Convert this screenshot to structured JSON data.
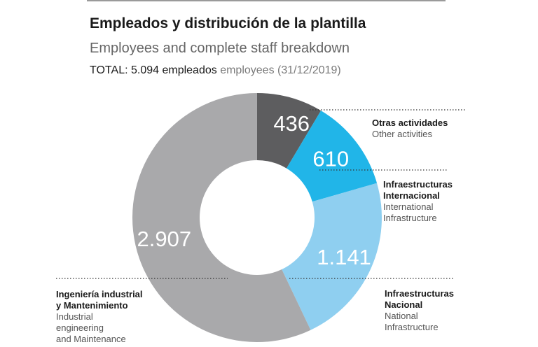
{
  "header": {
    "title": "Empleados y distribución de la plantilla",
    "subtitle": "Employees and complete staff breakdown",
    "total_es": "TOTAL: 5.094 empleados",
    "total_en": "employees (31/12/2019)"
  },
  "chart_data": {
    "type": "pie",
    "donut": true,
    "title": "Empleados y distribución de la plantilla",
    "subtitle": "Employees and complete staff breakdown",
    "total": 5094,
    "series": [
      {
        "value": 436,
        "display": "436",
        "color": "#5d5d5f",
        "label_es": "Otras actividades",
        "label_en": [
          "Other activities"
        ],
        "label_es_lines": [
          "Otras actividades"
        ]
      },
      {
        "value": 610,
        "display": "610",
        "color": "#21b5e8",
        "label_es": "Infraestructuras Internacional",
        "label_es_lines": [
          "Infraestructuras",
          "Internacional"
        ],
        "label_en": [
          "International",
          "Infrastructure"
        ]
      },
      {
        "value": 1141,
        "display": "1.141",
        "color": "#8fcff0",
        "label_es": "Infraestructuras Nacional",
        "label_es_lines": [
          "Infraestructuras",
          "Nacional"
        ],
        "label_en": [
          "National",
          "Infrastructure"
        ]
      },
      {
        "value": 2907,
        "display": "2.907",
        "color": "#a9a9ab",
        "label_es": "Ingeniería industrial y Mantenimiento",
        "label_es_lines": [
          "Ingeniería industrial",
          "y Mantenimiento"
        ],
        "label_en": [
          "Industrial",
          "engineering",
          "and Maintenance"
        ]
      }
    ],
    "legend": "callouts with dotted leader lines"
  }
}
